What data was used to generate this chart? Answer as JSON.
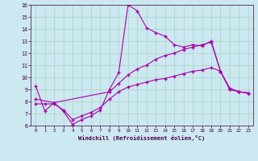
{
  "xlabel": "Windchill (Refroidissement éolien,°C)",
  "background_color": "#cce8f0",
  "grid_color": "#b0d8c8",
  "line_color": "#aa00aa",
  "xlim": [
    -0.5,
    23.5
  ],
  "ylim": [
    6,
    16
  ],
  "yticks": [
    6,
    7,
    8,
    9,
    10,
    11,
    12,
    13,
    14,
    15,
    16
  ],
  "xticks": [
    0,
    1,
    2,
    3,
    4,
    5,
    6,
    7,
    8,
    9,
    10,
    11,
    12,
    13,
    14,
    15,
    16,
    17,
    18,
    19,
    20,
    21,
    22,
    23
  ],
  "line1_x": [
    0,
    1,
    2,
    3,
    4,
    5,
    6,
    7,
    8,
    9,
    10,
    11,
    12,
    13,
    14,
    15,
    16,
    17,
    18,
    19,
    20,
    21,
    22,
    23
  ],
  "line1_y": [
    9.3,
    7.2,
    7.9,
    7.2,
    6.1,
    6.5,
    6.8,
    7.3,
    9.0,
    10.4,
    16.0,
    15.5,
    14.1,
    13.7,
    13.4,
    12.7,
    12.5,
    12.7,
    12.6,
    13.0,
    10.5,
    9.0,
    8.8,
    8.7
  ],
  "line2_x": [
    0,
    2,
    8,
    9,
    10,
    11,
    12,
    13,
    14,
    15,
    16,
    17,
    18,
    19,
    20,
    21,
    22,
    23
  ],
  "line2_y": [
    8.2,
    7.9,
    8.8,
    9.5,
    10.2,
    10.7,
    11.0,
    11.5,
    11.8,
    12.0,
    12.3,
    12.5,
    12.7,
    12.9,
    10.5,
    9.1,
    8.8,
    8.7
  ],
  "line3_x": [
    0,
    1,
    2,
    3,
    4,
    5,
    6,
    7,
    8,
    9,
    10,
    11,
    12,
    13,
    14,
    15,
    16,
    17,
    18,
    19,
    20,
    21,
    22,
    23
  ],
  "line3_y": [
    7.8,
    7.8,
    7.8,
    7.3,
    6.5,
    6.8,
    7.1,
    7.5,
    8.2,
    8.8,
    9.2,
    9.4,
    9.6,
    9.8,
    9.9,
    10.1,
    10.3,
    10.5,
    10.6,
    10.8,
    10.5,
    9.0,
    8.8,
    8.7
  ]
}
